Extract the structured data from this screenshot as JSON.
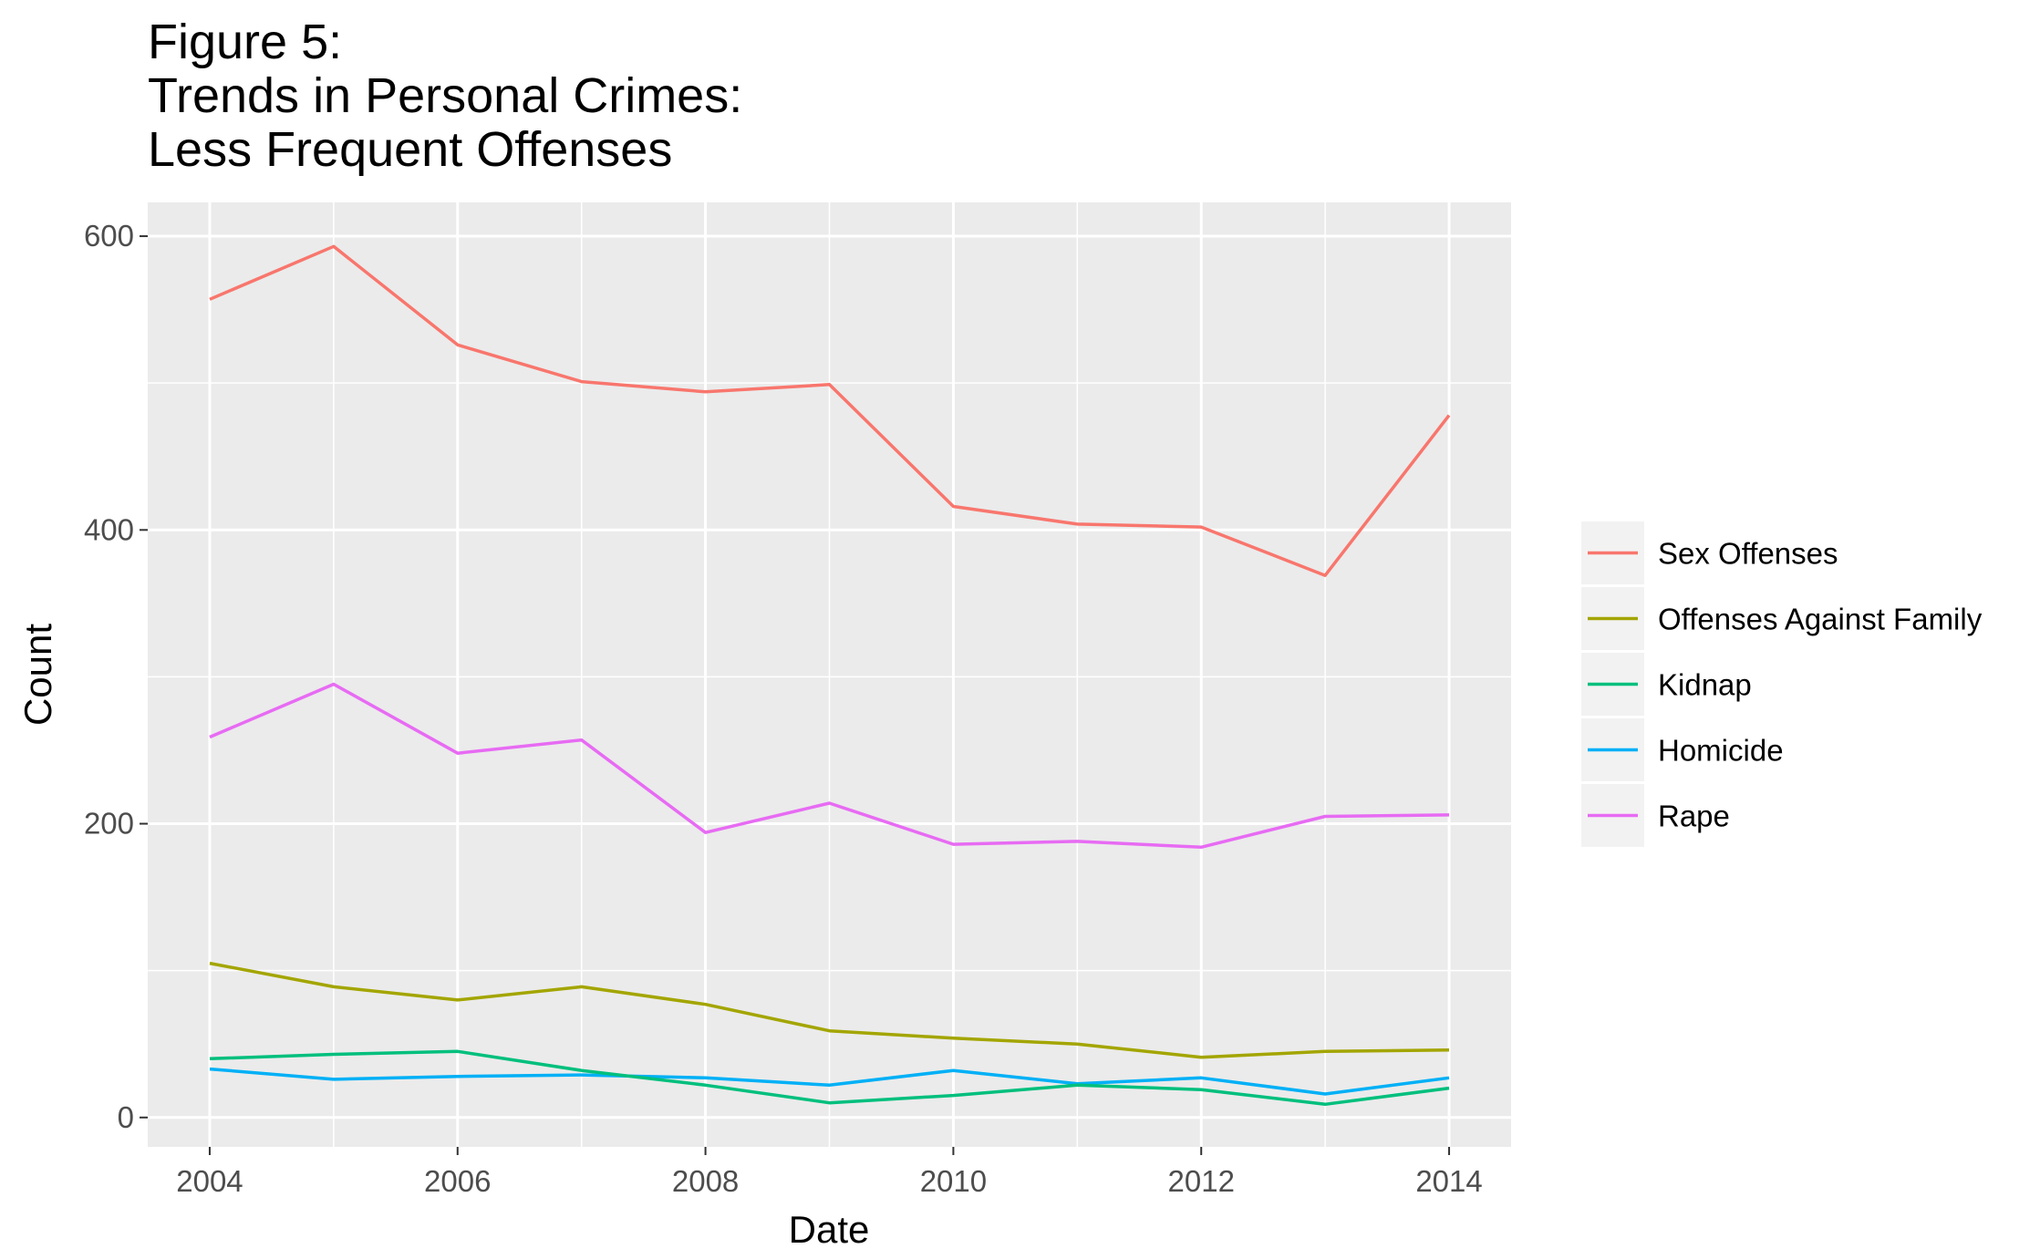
{
  "chart_data": {
    "type": "line",
    "title": [
      "Figure 5:",
      "Trends in Personal Crimes:",
      "Less Frequent Offenses"
    ],
    "xlabel": "Date",
    "ylabel": "Count",
    "x": [
      2004,
      2005,
      2006,
      2007,
      2008,
      2009,
      2010,
      2011,
      2012,
      2013,
      2014
    ],
    "xlim": [
      2003.5,
      2014.5
    ],
    "ylim": [
      -20,
      623
    ],
    "xticks": [
      2004,
      2006,
      2008,
      2010,
      2012,
      2014
    ],
    "xtick_labels": [
      "2004",
      "2006",
      "2008",
      "2010",
      "2012",
      "2014"
    ],
    "yticks": [
      0,
      200,
      400,
      600
    ],
    "ytick_labels": [
      "0",
      "200",
      "400",
      "600"
    ],
    "grid": true,
    "legend_position": "right",
    "series": [
      {
        "name": "Sex Offenses",
        "color": "#F8766D",
        "values": [
          557,
          593,
          526,
          501,
          494,
          499,
          416,
          404,
          402,
          369,
          478
        ]
      },
      {
        "name": "Offenses Against Family",
        "color": "#A3A500",
        "values": [
          105,
          89,
          80,
          89,
          77,
          59,
          54,
          50,
          41,
          45,
          46
        ]
      },
      {
        "name": "Kidnap",
        "color": "#00BF7D",
        "values": [
          40,
          43,
          45,
          32,
          22,
          10,
          15,
          22,
          19,
          9,
          20
        ]
      },
      {
        "name": "Homicide",
        "color": "#00B0F6",
        "values": [
          33,
          26,
          28,
          29,
          27,
          22,
          32,
          23,
          27,
          16,
          27
        ]
      },
      {
        "name": "Rape",
        "color": "#E76BF3",
        "values": [
          259,
          295,
          248,
          257,
          194,
          214,
          186,
          188,
          184,
          205,
          206
        ]
      }
    ]
  }
}
